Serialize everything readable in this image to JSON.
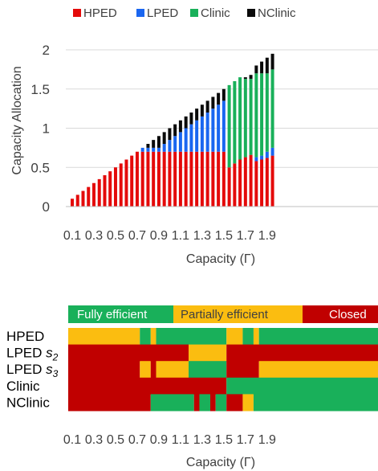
{
  "colors": {
    "HPED": "#e40a0a",
    "LPED": "#1a66f0",
    "Clinic": "#19b05a",
    "NClinic": "#0a0a0a",
    "fully_efficient": "#19b05a",
    "partially_efficient": "#fbbd10",
    "closed": "#c00000",
    "axis_text": "#404040",
    "grid": "#d9d9d9"
  },
  "chart_data": [
    {
      "type": "bar",
      "stacked": true,
      "xlabel": "Capacity (Γ)",
      "ylabel": "Capacity Allocation",
      "xlim": [
        0.1,
        1.95
      ],
      "ylim": [
        0,
        2
      ],
      "grid": true,
      "legend_position": "top",
      "x_tick_labels": [
        "0.1",
        "0.3",
        "0.5",
        "0.7",
        "0.9",
        "1.1",
        "1.3",
        "1.5",
        "1.7",
        "1.9"
      ],
      "y_tick_labels": [
        "0",
        "0.5",
        "1",
        "1.5",
        "2"
      ],
      "y_tick_values": [
        0,
        0.5,
        1,
        1.5,
        2
      ],
      "x": [
        0.1,
        0.15,
        0.2,
        0.25,
        0.3,
        0.35,
        0.4,
        0.45,
        0.5,
        0.55,
        0.6,
        0.65,
        0.7,
        0.75,
        0.8,
        0.85,
        0.9,
        0.95,
        1.0,
        1.05,
        1.1,
        1.15,
        1.2,
        1.25,
        1.3,
        1.35,
        1.4,
        1.45,
        1.5,
        1.55,
        1.6,
        1.65,
        1.7,
        1.75,
        1.8,
        1.85,
        1.9,
        1.95
      ],
      "series": [
        {
          "name": "HPED",
          "values": [
            0.1,
            0.15,
            0.2,
            0.25,
            0.3,
            0.35,
            0.4,
            0.45,
            0.5,
            0.55,
            0.6,
            0.65,
            0.7,
            0.7,
            0.7,
            0.7,
            0.7,
            0.7,
            0.7,
            0.7,
            0.7,
            0.7,
            0.7,
            0.7,
            0.7,
            0.7,
            0.7,
            0.7,
            0.7,
            0.5,
            0.55,
            0.6,
            0.63,
            0.66,
            0.58,
            0.6,
            0.62,
            0.65
          ]
        },
        {
          "name": "LPED",
          "values": [
            0,
            0,
            0,
            0,
            0,
            0,
            0,
            0,
            0,
            0,
            0,
            0,
            0,
            0.05,
            0.05,
            0.05,
            0.05,
            0.1,
            0.15,
            0.2,
            0.25,
            0.3,
            0.35,
            0.4,
            0.45,
            0.5,
            0.55,
            0.6,
            0.65,
            0,
            0,
            0,
            0,
            0,
            0.05,
            0.05,
            0.08,
            0.1
          ]
        },
        {
          "name": "Clinic",
          "values": [
            0,
            0,
            0,
            0,
            0,
            0,
            0,
            0,
            0,
            0,
            0,
            0,
            0,
            0,
            0,
            0,
            0,
            0,
            0,
            0,
            0,
            0,
            0,
            0,
            0,
            0,
            0,
            0,
            0,
            1.05,
            1.05,
            1.05,
            1.0,
            0.97,
            1.07,
            1.05,
            1.0,
            1.0
          ]
        },
        {
          "name": "NClinic",
          "values": [
            0,
            0,
            0,
            0,
            0,
            0,
            0,
            0,
            0,
            0,
            0,
            0,
            0,
            0,
            0.05,
            0.1,
            0.15,
            0.15,
            0.15,
            0.15,
            0.15,
            0.15,
            0.15,
            0.15,
            0.15,
            0.15,
            0.15,
            0.15,
            0.15,
            0,
            0,
            0,
            0.02,
            0.05,
            0.1,
            0.15,
            0.2,
            0.2
          ]
        }
      ]
    },
    {
      "type": "heatmap",
      "xlabel": "Capacity (Γ)",
      "x_tick_labels": [
        "0.1",
        "0.3",
        "0.5",
        "0.7",
        "0.9",
        "1.1",
        "1.3",
        "1.5",
        "1.7",
        "1.9"
      ],
      "status_legend": [
        "Fully efficient",
        "Partially efficient",
        "Closed"
      ],
      "rows": [
        {
          "label": "HPED",
          "segments": [
            [
              0.1,
              0.75,
              "partially_efficient"
            ],
            [
              0.75,
              0.85,
              "fully_efficient"
            ],
            [
              0.85,
              0.9,
              "partially_efficient"
            ],
            [
              0.9,
              1.55,
              "fully_efficient"
            ],
            [
              1.55,
              1.7,
              "partially_efficient"
            ],
            [
              1.7,
              1.8,
              "fully_efficient"
            ],
            [
              1.8,
              1.85,
              "partially_efficient"
            ],
            [
              1.85,
              2.0,
              "fully_efficient"
            ]
          ]
        },
        {
          "label": "LPED s2",
          "segments": [
            [
              0.1,
              1.2,
              "closed"
            ],
            [
              1.2,
              1.55,
              "partially_efficient"
            ],
            [
              1.55,
              2.0,
              "closed"
            ]
          ]
        },
        {
          "label": "LPED s3",
          "segments": [
            [
              0.1,
              0.75,
              "closed"
            ],
            [
              0.75,
              0.85,
              "partially_efficient"
            ],
            [
              0.85,
              0.9,
              "closed"
            ],
            [
              0.9,
              1.2,
              "partially_efficient"
            ],
            [
              1.2,
              1.55,
              "fully_efficient"
            ],
            [
              1.55,
              1.85,
              "closed"
            ],
            [
              1.85,
              2.0,
              "partially_efficient"
            ]
          ]
        },
        {
          "label": "Clinic",
          "segments": [
            [
              0.1,
              1.55,
              "closed"
            ],
            [
              1.55,
              2.0,
              "fully_efficient"
            ]
          ]
        },
        {
          "label": "NClinic",
          "segments": [
            [
              0.1,
              0.85,
              "closed"
            ],
            [
              0.85,
              1.25,
              "fully_efficient"
            ],
            [
              1.25,
              1.3,
              "closed"
            ],
            [
              1.3,
              1.4,
              "fully_efficient"
            ],
            [
              1.4,
              1.45,
              "closed"
            ],
            [
              1.45,
              1.55,
              "fully_efficient"
            ],
            [
              1.55,
              1.7,
              "closed"
            ],
            [
              1.7,
              1.8,
              "partially_efficient"
            ],
            [
              1.8,
              2.0,
              "fully_efficient"
            ]
          ]
        }
      ]
    }
  ]
}
